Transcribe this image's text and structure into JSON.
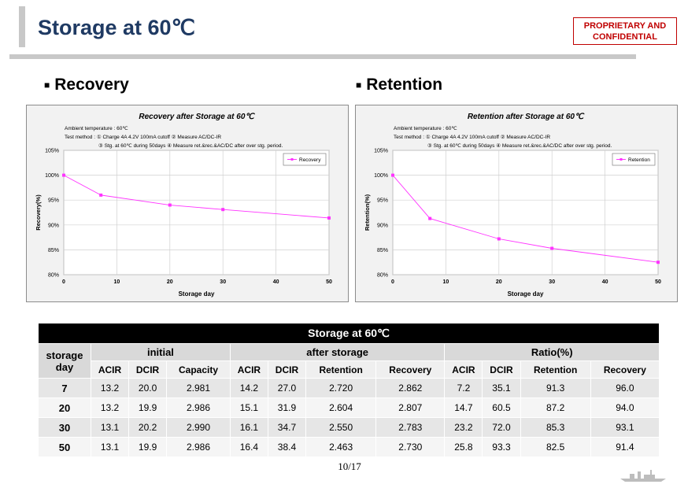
{
  "header": {
    "title": "Storage at 60℃",
    "confidential": "PROPRIETARY AND CONFIDENTIAL"
  },
  "sections": {
    "recovery_label": "Recovery",
    "retention_label": "Retention"
  },
  "charts": {
    "recovery": {
      "title": "Recovery after Storage at 60℃",
      "notes": [
        "Ambient temperature : 60℃",
        "Test method : ① Charge 4A 4.2V 100mA cutoff ② Measure AC/DC-IR",
        "③ Stg. at 60℃ during 50days ④ Measure ret.&rec.&AC/DC after over stg. period."
      ],
      "legend": "Recovery",
      "ylabel": "Recovery(%)",
      "xlabel": "Storage day"
    },
    "retention": {
      "title": "Retention after Storage at 60℃",
      "notes": [
        "Ambient temperature : 60℃",
        "Test method : ① Charge 4A 4.2V 100mA cutoff ② Measure AC/DC-IR",
        "③ Stg. at 60℃ during 50days ④ Measure ret.&rec.&AC/DC after over stg. period."
      ],
      "legend": "Retention",
      "ylabel": "Retention(%)",
      "xlabel": "Storage day"
    }
  },
  "chart_data": [
    {
      "type": "line",
      "title": "Recovery after Storage at 60℃",
      "xlabel": "Storage day",
      "ylabel": "Recovery(%)",
      "x": [
        0,
        7,
        20,
        30,
        50
      ],
      "series": [
        {
          "name": "Recovery",
          "values": [
            100,
            96.0,
            94.0,
            93.1,
            91.4
          ],
          "color": "#ff33ff"
        }
      ],
      "xlim": [
        0,
        50
      ],
      "ylim": [
        80,
        105
      ],
      "xticks": [
        0,
        10,
        20,
        30,
        40,
        50
      ],
      "yticks": [
        80,
        85,
        90,
        95,
        100,
        105
      ],
      "ytick_labels": [
        "80%",
        "85%",
        "90%",
        "95%",
        "100%",
        "105%"
      ],
      "grid": true,
      "legend_position": "top-right"
    },
    {
      "type": "line",
      "title": "Retention after Storage at 60℃",
      "xlabel": "Storage day",
      "ylabel": "Retention(%)",
      "x": [
        0,
        7,
        20,
        30,
        50
      ],
      "series": [
        {
          "name": "Retention",
          "values": [
            100,
            91.3,
            87.2,
            85.3,
            82.5
          ],
          "color": "#ff33ff"
        }
      ],
      "xlim": [
        0,
        50
      ],
      "ylim": [
        80,
        105
      ],
      "xticks": [
        0,
        10,
        20,
        30,
        40,
        50
      ],
      "yticks": [
        80,
        85,
        90,
        95,
        100,
        105
      ],
      "ytick_labels": [
        "80%",
        "85%",
        "90%",
        "95%",
        "100%",
        "105%"
      ],
      "grid": true,
      "legend_position": "top-right"
    }
  ],
  "table": {
    "title": "Storage at 60℃",
    "row_header": "storage day",
    "groups": [
      {
        "label": "initial",
        "columns": [
          "ACIR",
          "DCIR",
          "Capacity"
        ]
      },
      {
        "label": "after storage",
        "columns": [
          "ACIR",
          "DCIR",
          "Retention",
          "Recovery"
        ]
      },
      {
        "label": "Ratio(%)",
        "columns": [
          "ACIR",
          "DCIR",
          "Retention",
          "Recovery"
        ]
      }
    ],
    "rows": [
      {
        "day": "7",
        "values": [
          "13.2",
          "20.0",
          "2.981",
          "14.2",
          "27.0",
          "2.720",
          "2.862",
          "7.2",
          "35.1",
          "91.3",
          "96.0"
        ]
      },
      {
        "day": "20",
        "values": [
          "13.2",
          "19.9",
          "2.986",
          "15.1",
          "31.9",
          "2.604",
          "2.807",
          "14.7",
          "60.5",
          "87.2",
          "94.0"
        ]
      },
      {
        "day": "30",
        "values": [
          "13.1",
          "20.2",
          "2.990",
          "16.1",
          "34.7",
          "2.550",
          "2.783",
          "23.2",
          "72.0",
          "85.3",
          "93.1"
        ]
      },
      {
        "day": "50",
        "values": [
          "13.1",
          "19.9",
          "2.986",
          "16.4",
          "38.4",
          "2.463",
          "2.730",
          "25.8",
          "93.3",
          "82.5",
          "91.4"
        ]
      }
    ]
  },
  "footer": {
    "page_number": "10/17"
  },
  "colors": {
    "title": "#1f3a63",
    "confidential": "#c00000",
    "series": "#ff33ff"
  }
}
